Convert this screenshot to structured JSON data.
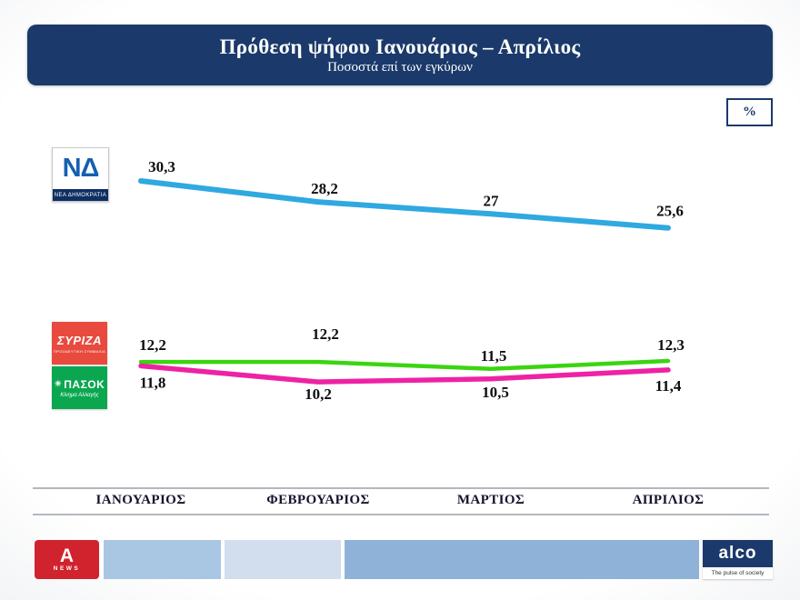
{
  "header": {
    "title": "Πρόθεση ψήφου Ιανουάριος – Απρίλιος",
    "subtitle": "Ποσοστά επί των εγκύρων",
    "unit_badge": "%"
  },
  "chart_data": {
    "type": "line",
    "categories": [
      "ΙΑΝΟΥΑΡΙΟΣ",
      "ΦΕΒΡΟΥΑΡΙΟΣ",
      "ΜΑΡΤΙΟΣ",
      "ΑΠΡΙΛΙΟΣ"
    ],
    "series": [
      {
        "id": "nd",
        "name": "ΝΕΑ ΔΗΜΟΚΡΑΤΙΑ",
        "color": "#2fa9e0",
        "values": [
          30.3,
          28.2,
          27,
          25.6
        ],
        "point_labels": [
          "30,3",
          "28,2",
          "27",
          "25,6"
        ]
      },
      {
        "id": "pasok",
        "name": "ΠΑΣΟΚ",
        "color": "#3bd411",
        "values": [
          12.2,
          12.2,
          11.5,
          12.3
        ],
        "point_labels": [
          "12,2",
          "12,2",
          "11,5",
          "12,3"
        ]
      },
      {
        "id": "syriza",
        "name": "ΣΥΡΙΖΑ",
        "color": "#ee22a4",
        "values": [
          11.8,
          10.2,
          10.5,
          11.4
        ],
        "point_labels": [
          "11,8",
          "10,2",
          "10,5",
          "11,4"
        ]
      }
    ],
    "ylim": [
      9,
      32
    ],
    "grid": false,
    "legend_position": "party-logos-left",
    "value_format": "decimal-comma"
  },
  "logos": {
    "nd": {
      "monogram": "ΝΔ",
      "caption": "ΝΕΑ ΔΗΜΟΚΡΑΤΙΑ"
    },
    "syriza": {
      "name": "ΣΥΡΙΖΑ",
      "subtitle": "ΠΡΟΟΔΕΥΤΙΚΗ ΣΥΜΜΑΧΙΑ"
    },
    "pasok": {
      "name": "ΠΑΣΟΚ",
      "subtitle": "Κίνημα Αλλαγής"
    }
  },
  "footer": {
    "channel": {
      "letter": "Α",
      "label": "NEWS"
    },
    "brand": {
      "name": "alco",
      "tagline": "The pulse of society"
    }
  }
}
